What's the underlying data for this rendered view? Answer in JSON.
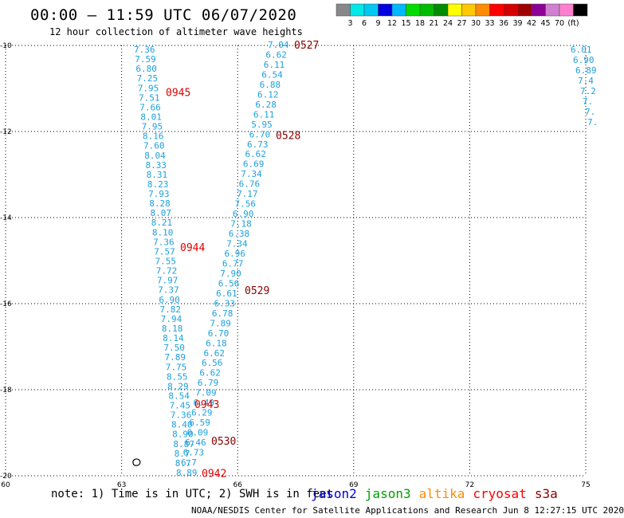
{
  "header": {
    "title": "00:00 – 11:59 UTC 06/07/2020",
    "subtitle": "12 hour collection of altimeter wave heights"
  },
  "legend": {
    "colors": [
      "#888888",
      "#00e8e8",
      "#00c8f0",
      "#0000e0",
      "#00b8ff",
      "#00dc00",
      "#00bc00",
      "#008c00",
      "#ffff00",
      "#ffc800",
      "#ff8c00",
      "#ff0000",
      "#d40000",
      "#a00000",
      "#8c0096",
      "#d080d0",
      "#ff80d0",
      "#000000"
    ],
    "labels": [
      "3",
      "6",
      "9",
      "12",
      "15",
      "18",
      "21",
      "24",
      "27",
      "30",
      "33",
      "36",
      "39",
      "42",
      "45",
      "70",
      "(ft)"
    ]
  },
  "map": {
    "lon_range": [
      60,
      75
    ],
    "lat_range": [
      -20,
      -10
    ],
    "x_ticks": [
      "60",
      "63",
      "66",
      "69",
      "72",
      "75"
    ],
    "y_ticks": [
      "-10",
      "-12",
      "-14",
      "-16",
      "-18",
      "-20"
    ],
    "wave_color": "#1ea0dc",
    "time_color": "#e00000",
    "time_color_dark": "#8c0000",
    "left_track": [
      "7.36",
      "7.59",
      "6.80",
      "7.25",
      "7.95",
      "7.51",
      "7.66",
      "8.01",
      "7.95",
      "8.16",
      "7.60",
      "8.04",
      "8.33",
      "8.31",
      "8.23",
      "7.93",
      "8.28",
      "8.07",
      "8.21",
      "8.10",
      "7.36",
      "7.57",
      "7.55",
      "7.72",
      "7.97",
      "7.37",
      "6.90",
      "7.82",
      "7.94",
      "8.18",
      "8.14",
      "7.50",
      "7.89",
      "7.75",
      "8.55",
      "8.29",
      "8.54",
      "7.45",
      "7.36",
      "8.40",
      "8.90",
      "8.87",
      "8.7",
      "8.7",
      "8.89"
    ],
    "right_track": [
      "7.04",
      "6.62",
      "6.11",
      "6.54",
      "6.88",
      "6.12",
      "6.28",
      "6.11",
      "5.95",
      "6.70",
      "6.73",
      "6.62",
      "6.69",
      "7.34",
      "6.76",
      "7.17",
      "7.56",
      "6.90",
      "7.18",
      "6.38",
      "7.34",
      "6.96",
      "6.77",
      "7.90",
      "6.56",
      "6.61",
      "6.33",
      "6.78",
      "7.89",
      "6.70",
      "6.18",
      "6.62",
      "6.56",
      "6.62",
      "6.79",
      "7.09",
      "6.49",
      "6.29",
      "6.59",
      "6.09",
      "6.46",
      "6.73",
      "6.7"
    ],
    "edge_track": [
      "6.01",
      "6.90",
      "6.89",
      "7.4",
      "7.2",
      "7.",
      "7.",
      "7."
    ],
    "time_labels_left": [
      {
        "text": "0945",
        "lat": -11.1
      },
      {
        "text": "0944",
        "lat": -14.7
      },
      {
        "text": "0943",
        "lat": -18.35
      },
      {
        "text": "0942",
        "lat": -19.95
      }
    ],
    "time_labels_right": [
      {
        "text": "0527",
        "lat": -10.0
      },
      {
        "text": "0528",
        "lat": -12.1
      },
      {
        "text": "0529",
        "lat": -15.7
      },
      {
        "text": "0530",
        "lat": -19.2
      }
    ],
    "island": {
      "name": "island",
      "lon": 63.4,
      "lat": -19.7
    }
  },
  "footer": {
    "note": "note: 1) Time is in UTC; 2) SWH is in feet",
    "satellites": [
      {
        "name": "jason2",
        "color": "#0000e0"
      },
      {
        "name": "jason3",
        "color": "#00a000"
      },
      {
        "name": "altika",
        "color": "#ff8c00"
      },
      {
        "name": "cryosat",
        "color": "#ff0000"
      },
      {
        "name": "s3a",
        "color": "#8c0000"
      }
    ],
    "credit": "NOAA/NESDIS Center for Satellite Applications and Research   Jun  8 12:27:15 UTC 2020"
  }
}
